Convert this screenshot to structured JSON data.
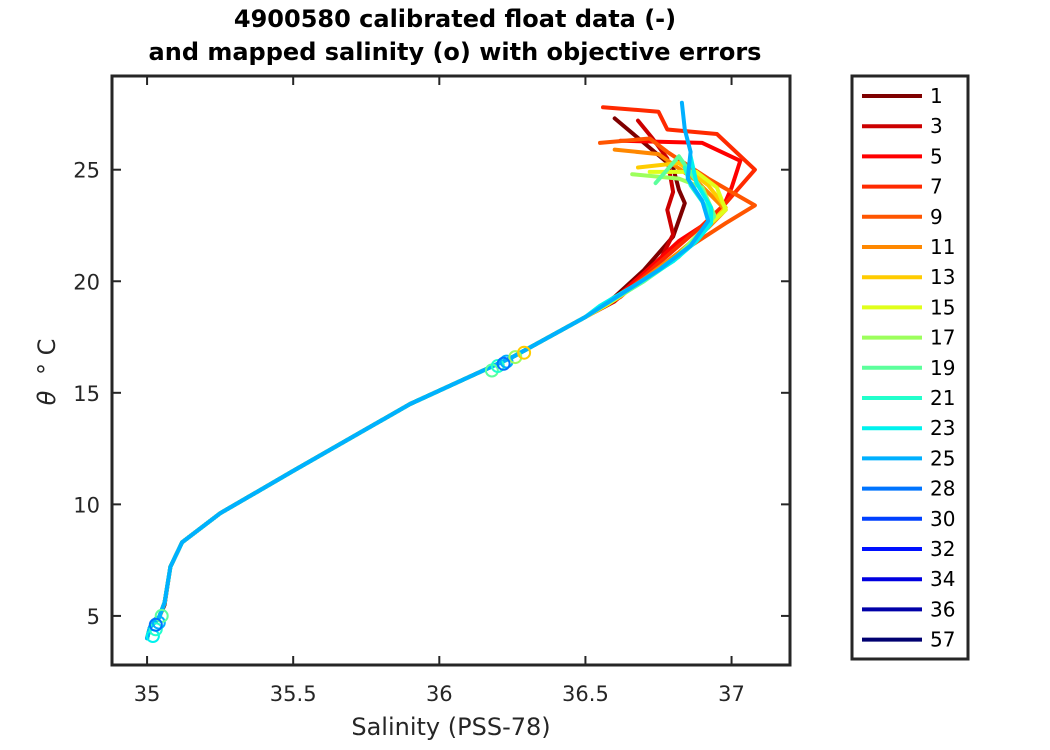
{
  "chart_data": {
    "type": "line",
    "title": [
      "4900580 calibrated float data (-)",
      "and mapped salinity (o) with objective errors"
    ],
    "xlabel": "Salinity (PSS-78)",
    "ylabel_symbol": "θ",
    "ylabel_unit": "° C",
    "xlim": [
      34.88,
      37.2
    ],
    "ylim": [
      2.8,
      29.2
    ],
    "xticks": [
      35,
      35.5,
      36,
      36.5,
      37
    ],
    "xtick_labels": [
      "35",
      "35.5",
      "36",
      "36.5",
      "37"
    ],
    "yticks": [
      5,
      10,
      15,
      20,
      25
    ],
    "ytick_labels": [
      "5",
      "10",
      "15",
      "20",
      "25"
    ],
    "legend": {
      "position": "outside-right",
      "entries": [
        {
          "label": "1",
          "color": "#7f0000"
        },
        {
          "label": "3",
          "color": "#cc0000"
        },
        {
          "label": "5",
          "color": "#ff0000"
        },
        {
          "label": "7",
          "color": "#ff2a00"
        },
        {
          "label": "9",
          "color": "#ff5500"
        },
        {
          "label": "11",
          "color": "#ff8800"
        },
        {
          "label": "13",
          "color": "#ffcc00"
        },
        {
          "label": "15",
          "color": "#e0ff1a"
        },
        {
          "label": "17",
          "color": "#9cff5c"
        },
        {
          "label": "19",
          "color": "#5cff9c"
        },
        {
          "label": "21",
          "color": "#22ffcc"
        },
        {
          "label": "23",
          "color": "#00f2ee"
        },
        {
          "label": "25",
          "color": "#00b0ff"
        },
        {
          "label": "28",
          "color": "#0074ff"
        },
        {
          "label": "30",
          "color": "#0040ff"
        },
        {
          "label": "32",
          "color": "#0010ff"
        },
        {
          "label": "34",
          "color": "#0000e0"
        },
        {
          "label": "36",
          "color": "#0000a8"
        },
        {
          "label": "57",
          "color": "#000070"
        }
      ]
    },
    "series": [
      {
        "name": "1",
        "color": "#7f0000",
        "points": [
          [
            36.6,
            27.3
          ],
          [
            36.7,
            26.2
          ],
          [
            36.8,
            25.1
          ],
          [
            36.82,
            24.1
          ],
          [
            36.84,
            23.5
          ],
          [
            36.8,
            22.0
          ],
          [
            36.7,
            20.5
          ],
          [
            36.6,
            19.3
          ],
          [
            36.5,
            18.4
          ],
          [
            36.25,
            16.6
          ],
          [
            35.9,
            14.5
          ],
          [
            35.5,
            11.5
          ],
          [
            35.25,
            9.6
          ],
          [
            35.12,
            8.3
          ],
          [
            35.08,
            7.2
          ],
          [
            35.06,
            5.5
          ],
          [
            35.04,
            4.9
          ],
          [
            35.01,
            4.5
          ],
          [
            35.0,
            4.0
          ]
        ]
      },
      {
        "name": "3",
        "color": "#cc0000",
        "points": [
          [
            36.68,
            27.2
          ],
          [
            36.73,
            26.4
          ],
          [
            36.78,
            25.5
          ],
          [
            36.8,
            24.0
          ],
          [
            36.78,
            23.2
          ],
          [
            36.8,
            22.1
          ],
          [
            36.75,
            20.8
          ],
          [
            36.6,
            19.1
          ],
          [
            36.5,
            18.4
          ],
          [
            36.25,
            16.6
          ],
          [
            35.9,
            14.5
          ],
          [
            35.5,
            11.5
          ],
          [
            35.25,
            9.6
          ],
          [
            35.12,
            8.3
          ],
          [
            35.08,
            7.2
          ],
          [
            35.06,
            5.6
          ],
          [
            35.04,
            4.9
          ],
          [
            35.01,
            4.5
          ],
          [
            35.0,
            4.0
          ]
        ]
      },
      {
        "name": "5",
        "color": "#ff0000",
        "points": [
          [
            36.62,
            26.3
          ],
          [
            36.9,
            26.2
          ],
          [
            37.03,
            25.4
          ],
          [
            37.0,
            24.2
          ],
          [
            36.96,
            23.0
          ],
          [
            36.82,
            21.8
          ],
          [
            36.72,
            20.6
          ],
          [
            36.6,
            19.2
          ],
          [
            36.5,
            18.4
          ],
          [
            36.25,
            16.6
          ],
          [
            35.9,
            14.5
          ],
          [
            35.5,
            11.5
          ],
          [
            35.25,
            9.6
          ],
          [
            35.12,
            8.3
          ],
          [
            35.08,
            7.2
          ],
          [
            35.06,
            5.6
          ],
          [
            35.04,
            4.9
          ],
          [
            35.01,
            4.5
          ],
          [
            35.0,
            4.0
          ]
        ]
      },
      {
        "name": "7",
        "color": "#ff2a00",
        "points": [
          [
            36.56,
            27.8
          ],
          [
            36.75,
            27.6
          ],
          [
            36.78,
            26.8
          ],
          [
            36.95,
            26.6
          ],
          [
            37.08,
            25.0
          ],
          [
            36.98,
            23.5
          ],
          [
            36.9,
            22.5
          ],
          [
            36.75,
            20.8
          ],
          [
            36.62,
            19.3
          ],
          [
            36.5,
            18.4
          ],
          [
            36.25,
            16.6
          ],
          [
            35.9,
            14.5
          ],
          [
            35.5,
            11.5
          ],
          [
            35.25,
            9.6
          ],
          [
            35.12,
            8.3
          ],
          [
            35.08,
            7.2
          ],
          [
            35.06,
            5.6
          ],
          [
            35.04,
            4.9
          ],
          [
            35.01,
            4.5
          ],
          [
            35.0,
            4.0
          ]
        ]
      },
      {
        "name": "9",
        "color": "#ff5500",
        "points": [
          [
            36.55,
            26.2
          ],
          [
            36.72,
            26.4
          ],
          [
            36.78,
            25.8
          ],
          [
            36.92,
            24.6
          ],
          [
            37.08,
            23.4
          ],
          [
            36.98,
            22.6
          ],
          [
            36.85,
            21.5
          ],
          [
            36.72,
            20.3
          ],
          [
            36.6,
            19.2
          ],
          [
            36.5,
            18.4
          ],
          [
            36.25,
            16.6
          ],
          [
            35.9,
            14.5
          ],
          [
            35.5,
            11.5
          ],
          [
            35.25,
            9.6
          ],
          [
            35.12,
            8.3
          ],
          [
            35.08,
            7.2
          ],
          [
            35.06,
            5.6
          ],
          [
            35.04,
            4.9
          ],
          [
            35.01,
            4.5
          ],
          [
            35.0,
            4.0
          ]
        ]
      },
      {
        "name": "11",
        "color": "#ff8800",
        "points": [
          [
            36.6,
            25.9
          ],
          [
            36.75,
            25.7
          ],
          [
            36.88,
            24.5
          ],
          [
            36.98,
            23.2
          ],
          [
            36.92,
            22.4
          ],
          [
            36.82,
            21.3
          ],
          [
            36.7,
            20.1
          ],
          [
            36.58,
            19.0
          ],
          [
            36.5,
            18.4
          ],
          [
            36.25,
            16.6
          ],
          [
            35.9,
            14.5
          ],
          [
            35.5,
            11.5
          ],
          [
            35.25,
            9.6
          ],
          [
            35.12,
            8.3
          ],
          [
            35.08,
            7.2
          ],
          [
            35.06,
            5.6
          ],
          [
            35.04,
            4.9
          ],
          [
            35.01,
            4.5
          ],
          [
            35.0,
            4.0
          ]
        ]
      },
      {
        "name": "13",
        "color": "#ffcc00",
        "points": [
          [
            36.68,
            25.1
          ],
          [
            36.82,
            25.3
          ],
          [
            36.92,
            24.3
          ],
          [
            36.98,
            23.3
          ],
          [
            36.92,
            22.5
          ],
          [
            36.84,
            21.4
          ],
          [
            36.72,
            20.2
          ],
          [
            36.58,
            19.0
          ],
          [
            36.5,
            18.4
          ],
          [
            36.25,
            16.6
          ],
          [
            35.9,
            14.5
          ],
          [
            35.5,
            11.5
          ],
          [
            35.25,
            9.6
          ],
          [
            35.12,
            8.3
          ],
          [
            35.08,
            7.2
          ],
          [
            35.06,
            5.6
          ],
          [
            35.04,
            4.9
          ],
          [
            35.01,
            4.5
          ],
          [
            35.0,
            4.0
          ]
        ]
      },
      {
        "name": "15",
        "color": "#e0ff1a",
        "points": [
          [
            36.72,
            24.9
          ],
          [
            36.88,
            24.9
          ],
          [
            36.95,
            24.2
          ],
          [
            36.98,
            23.2
          ],
          [
            36.92,
            22.5
          ],
          [
            36.84,
            21.4
          ],
          [
            36.72,
            20.2
          ],
          [
            36.58,
            19.0
          ],
          [
            36.5,
            18.4
          ],
          [
            36.25,
            16.6
          ],
          [
            35.9,
            14.5
          ],
          [
            35.5,
            11.5
          ],
          [
            35.25,
            9.6
          ],
          [
            35.12,
            8.3
          ],
          [
            35.08,
            7.2
          ],
          [
            35.06,
            5.6
          ],
          [
            35.04,
            4.9
          ],
          [
            35.01,
            4.5
          ],
          [
            35.0,
            4.0
          ]
        ]
      },
      {
        "name": "17",
        "color": "#9cff5c",
        "points": [
          [
            36.66,
            24.8
          ],
          [
            36.82,
            24.6
          ],
          [
            36.9,
            24.2
          ],
          [
            36.94,
            23.0
          ],
          [
            36.9,
            22.3
          ],
          [
            36.82,
            21.2
          ],
          [
            36.7,
            20.0
          ],
          [
            36.56,
            18.9
          ],
          [
            36.5,
            18.4
          ],
          [
            36.25,
            16.6
          ],
          [
            35.9,
            14.5
          ],
          [
            35.5,
            11.5
          ],
          [
            35.25,
            9.6
          ],
          [
            35.12,
            8.3
          ],
          [
            35.08,
            7.2
          ],
          [
            35.06,
            5.6
          ],
          [
            35.04,
            4.9
          ],
          [
            35.01,
            4.5
          ],
          [
            35.0,
            4.0
          ]
        ]
      },
      {
        "name": "19",
        "color": "#5cff9c",
        "points": [
          [
            36.74,
            24.4
          ],
          [
            36.82,
            25.6
          ],
          [
            36.9,
            24.1
          ],
          [
            36.94,
            22.9
          ],
          [
            36.9,
            22.2
          ],
          [
            36.82,
            21.1
          ],
          [
            36.7,
            20.0
          ],
          [
            36.56,
            18.9
          ],
          [
            36.5,
            18.4
          ],
          [
            36.25,
            16.6
          ],
          [
            35.9,
            14.5
          ],
          [
            35.5,
            11.5
          ],
          [
            35.25,
            9.6
          ],
          [
            35.12,
            8.3
          ],
          [
            35.08,
            7.2
          ],
          [
            35.06,
            5.6
          ],
          [
            35.04,
            4.9
          ],
          [
            35.01,
            4.5
          ],
          [
            35.0,
            4.0
          ]
        ]
      },
      {
        "name": "21",
        "color": "#22ffcc",
        "points": [
          [
            36.84,
            25.1
          ],
          [
            36.86,
            24.3
          ],
          [
            36.92,
            23.2
          ],
          [
            36.93,
            22.6
          ],
          [
            36.88,
            21.8
          ],
          [
            36.8,
            20.9
          ],
          [
            36.68,
            19.9
          ],
          [
            36.55,
            18.9
          ],
          [
            36.5,
            18.4
          ],
          [
            36.25,
            16.6
          ],
          [
            35.9,
            14.5
          ],
          [
            35.5,
            11.5
          ],
          [
            35.25,
            9.6
          ],
          [
            35.12,
            8.3
          ],
          [
            35.08,
            7.2
          ],
          [
            35.06,
            5.6
          ],
          [
            35.04,
            4.9
          ],
          [
            35.01,
            4.5
          ],
          [
            35.0,
            4.0
          ]
        ]
      },
      {
        "name": "23",
        "color": "#00f2ee",
        "points": [
          [
            36.86,
            25.6
          ],
          [
            36.88,
            24.4
          ],
          [
            36.93,
            23.3
          ],
          [
            36.93,
            22.6
          ],
          [
            36.88,
            21.8
          ],
          [
            36.8,
            20.9
          ],
          [
            36.68,
            19.9
          ],
          [
            36.55,
            18.9
          ],
          [
            36.5,
            18.4
          ],
          [
            36.25,
            16.6
          ],
          [
            35.9,
            14.5
          ],
          [
            35.5,
            11.5
          ],
          [
            35.25,
            9.6
          ],
          [
            35.12,
            8.3
          ],
          [
            35.08,
            7.2
          ],
          [
            35.06,
            5.6
          ],
          [
            35.04,
            4.9
          ],
          [
            35.01,
            4.5
          ],
          [
            35.0,
            4.0
          ]
        ]
      },
      {
        "name": "25",
        "color": "#00b0ff",
        "points": [
          [
            36.83,
            28.0
          ],
          [
            36.84,
            26.8
          ],
          [
            36.86,
            25.8
          ],
          [
            36.85,
            24.6
          ],
          [
            36.9,
            23.6
          ],
          [
            36.92,
            22.7
          ],
          [
            36.86,
            21.6
          ],
          [
            36.75,
            20.5
          ],
          [
            36.62,
            19.4
          ],
          [
            36.5,
            18.4
          ],
          [
            36.25,
            16.6
          ],
          [
            35.9,
            14.5
          ],
          [
            35.5,
            11.5
          ],
          [
            35.25,
            9.6
          ],
          [
            35.12,
            8.3
          ],
          [
            35.08,
            7.2
          ],
          [
            35.06,
            5.6
          ],
          [
            35.04,
            4.9
          ],
          [
            35.01,
            4.5
          ],
          [
            35.0,
            4.0
          ]
        ]
      }
    ],
    "markers": [
      {
        "x": 35.02,
        "y": 4.1,
        "color": "#00f2ee"
      },
      {
        "x": 35.03,
        "y": 4.4,
        "color": "#22ffcc"
      },
      {
        "x": 35.04,
        "y": 4.7,
        "color": "#00b0ff"
      },
      {
        "x": 35.05,
        "y": 5.0,
        "color": "#5cff9c"
      },
      {
        "x": 35.03,
        "y": 4.6,
        "color": "#0074ff"
      },
      {
        "x": 36.18,
        "y": 16.0,
        "color": "#5cff9c"
      },
      {
        "x": 36.2,
        "y": 16.2,
        "color": "#22ffcc"
      },
      {
        "x": 36.23,
        "y": 16.4,
        "color": "#00b0ff"
      },
      {
        "x": 36.26,
        "y": 16.6,
        "color": "#9cff5c"
      },
      {
        "x": 36.29,
        "y": 16.8,
        "color": "#ffcc00"
      },
      {
        "x": 36.22,
        "y": 16.3,
        "color": "#0074ff"
      }
    ]
  }
}
